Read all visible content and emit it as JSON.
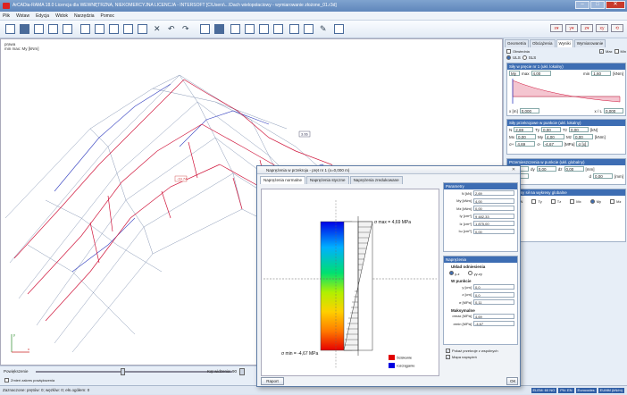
{
  "app": {
    "title": "ArCADia-RAMA 18.0 Licencja dla WEWNĘTRZNA, NIEKOMERCYJNA LICENCJA - INTERSOFT [C\\Users\\...\\Dach wielopołaciowy - wymiarowanie złożone_01.r3d]"
  },
  "menu": [
    "Plik",
    "Wstaw",
    "Edycja",
    "Widok",
    "Narzędzia",
    "Pomoc"
  ],
  "view": {
    "label_line1": "prawa",
    "label_line2": "min max: My [kNm]",
    "value_tag": "-19.74",
    "value_tag2": "3.66",
    "axis_y": "y",
    "axis_x": "x"
  },
  "rpanel": {
    "tabs": [
      "Geometria",
      "Obciążenia",
      "Wyniki",
      "Wymiarowanie"
    ],
    "obwiednia": "Obwiednia",
    "max": "Max",
    "min": "Min",
    "uls": "ULS",
    "sls": "SLS",
    "sec1": {
      "title": "Siły w pręcie nr 1 (ukł. lokalny)",
      "sel": "My",
      "max_label": "max",
      "max_val": "4,00",
      "min_label": "min",
      "min_val": "1,60",
      "unit": "[kNm]",
      "x_label": "x [m]",
      "x_val": "0,000",
      "xl_label": "x / L",
      "xl_val": "0,000"
    },
    "sec2": {
      "title": "Siły przekrojowe w punkcie (ukł. lokalny)",
      "rows": [
        [
          "N",
          "2,69",
          "Ty",
          "0,00",
          "Tz",
          "0,00",
          "[kN]"
        ],
        [
          "Mx",
          "0,00",
          "My",
          "4,00",
          "Mz",
          "0,00",
          "[kNm]"
        ],
        [
          "σ+",
          "4,69",
          "σ-",
          "-4,67",
          "[MPa]",
          "σ [x]",
          ""
        ]
      ]
    },
    "sec3": {
      "title": "Przemieszczenia w punkcie (ukł. globalny)",
      "rows": [
        [
          "dx",
          "0,00",
          "dy",
          "0,00",
          "dz",
          "0,00",
          "[mm]"
        ],
        [
          "",
          "0,00",
          "",
          "",
          "d",
          "0,00",
          "[mm]"
        ]
      ]
    },
    "sec4": {
      "title": "Wykresy sił na wykresy globalne",
      "items": [
        "N",
        "Ty",
        "Tz",
        "Mx",
        "My",
        "Mz"
      ]
    }
  },
  "bottom": {
    "przewiez": "Powiększenie",
    "zoom_label": "Kąt widzenia: 90",
    "checkbox": "Zmień zakres powiększenia"
  },
  "status": {
    "text": "Zaznaczone: prętów: 0; węzłów: 0; ełn.ogółem: 0",
    "badges": [
      "ELEM: 60 NO",
      "PN: EN",
      "Eurocodes",
      "EUMM (kN/m)"
    ]
  },
  "dialog": {
    "title": "Naprężenia w przekroju - pręt nr 1 (x=0,000 m)",
    "tabs": [
      "Naprężenia normalne",
      "Naprężenia styczne",
      "Naprężenia zredukowane"
    ],
    "sigma_max": "σ max = 4,69 MPa",
    "sigma_min": "σ min = -4,67 MPa",
    "legend": [
      {
        "label": "Ściskanie",
        "color": "#e00000"
      },
      {
        "label": "rozciąganie",
        "color": "#0000e0"
      }
    ],
    "params": {
      "title": "Parametry",
      "rows": [
        [
          "N [kN]",
          "2,69"
        ],
        [
          "My [kNm]",
          "4,00"
        ],
        [
          "Mz [kNm]",
          "0,00"
        ],
        [
          "Iy [cm⁴]",
          "9 482,33"
        ],
        [
          "Iz [cm⁴]",
          "1 875,00"
        ],
        [
          "Iω [cm⁶]",
          "0,00"
        ]
      ]
    },
    "napr": {
      "title": "Naprężenia",
      "uklad": "Układ odniesienia",
      "yz": "y-z",
      "yz2": "yy-zy",
      "w_punkcie": "W punkcie",
      "rows": [
        [
          "y [cm]",
          "0,0"
        ],
        [
          "z [cm]",
          "0,0"
        ],
        [
          "σ [MPa]",
          "0,11"
        ]
      ],
      "maks": "Maksymalne",
      "maxrows": [
        [
          "σmax [MPa]",
          "4,69"
        ],
        [
          "σmin [MPa]",
          "-4,67"
        ]
      ]
    },
    "checks": [
      "Pokaż przekroje z wspólnych",
      "Mapa naprężeń"
    ],
    "raport": "Raport",
    "ok": "OK"
  }
}
